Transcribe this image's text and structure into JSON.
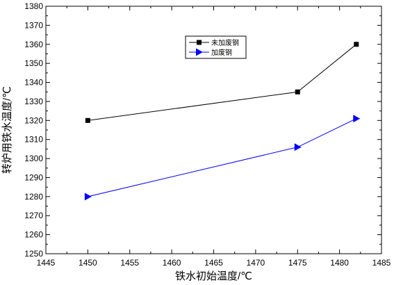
{
  "chart_data": {
    "type": "line",
    "title": "",
    "xlabel": "铁水初始温度/℃",
    "ylabel": "转炉用铁水温度/℃",
    "xlim": [
      1445,
      1485
    ],
    "ylim": [
      1250,
      1380
    ],
    "xticks": [
      1445,
      1450,
      1455,
      1460,
      1465,
      1470,
      1475,
      1480,
      1485
    ],
    "yticks": [
      1250,
      1260,
      1270,
      1280,
      1290,
      1300,
      1310,
      1320,
      1330,
      1340,
      1350,
      1360,
      1370,
      1380
    ],
    "grid": false,
    "legend_position": "top-center",
    "series": [
      {
        "name": "未加废钢",
        "color": "#000000",
        "marker": "square",
        "x": [
          1450,
          1475,
          1482
        ],
        "y": [
          1320,
          1335,
          1360
        ]
      },
      {
        "name": "加废钢",
        "color": "#0000ff",
        "marker": "triangle-right",
        "x": [
          1450,
          1475,
          1482
        ],
        "y": [
          1280,
          1306,
          1321
        ]
      }
    ]
  }
}
